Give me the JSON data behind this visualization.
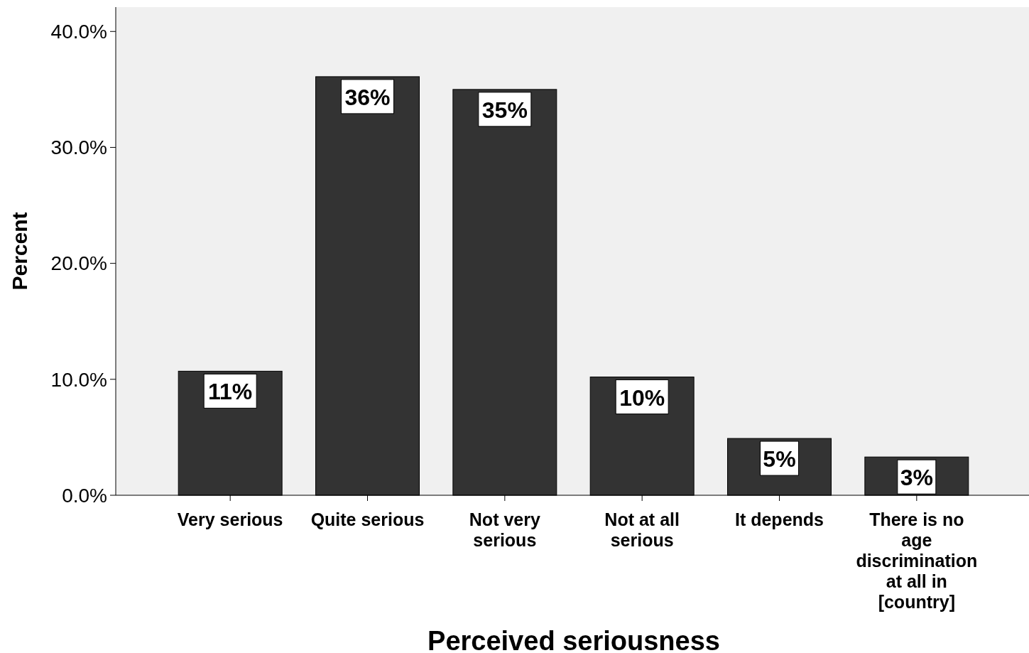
{
  "chart_data": {
    "type": "bar",
    "xlabel": "Perceived seriousness",
    "ylabel": "Percent",
    "categories": [
      "Very serious",
      "Quite serious",
      "Not very serious",
      "Not at all serious",
      "It depends",
      "There is no age discrimination at all in [country]"
    ],
    "values": [
      10.7,
      36.1,
      35.0,
      10.2,
      4.9,
      3.3
    ],
    "value_labels": [
      "11%",
      "36%",
      "35%",
      "10%",
      "5%",
      "3%"
    ],
    "color": "#333333",
    "ylim": [
      0,
      42.1
    ],
    "yticks": [
      {
        "value": 0,
        "label": "0.0%"
      },
      {
        "value": 10,
        "label": "10.0%"
      },
      {
        "value": 20,
        "label": "20.0%"
      },
      {
        "value": 30,
        "label": "30.0%"
      },
      {
        "value": 40,
        "label": "40.0%"
      }
    ],
    "grid": false
  }
}
